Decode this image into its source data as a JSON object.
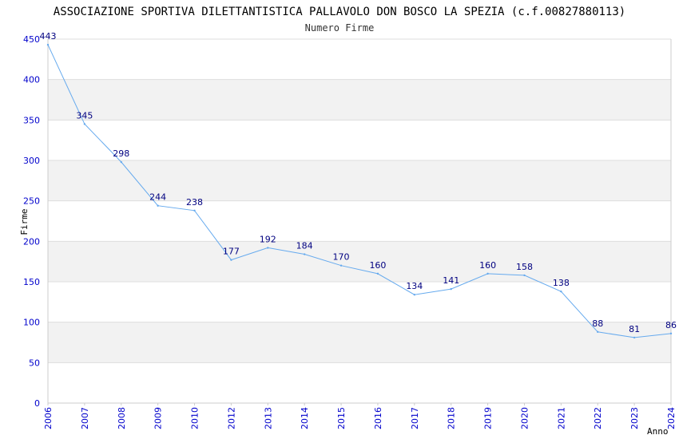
{
  "chart_data": {
    "type": "line",
    "title": "ASSOCIAZIONE SPORTIVA DILETTANTISTICA PALLAVOLO DON BOSCO LA SPEZIA (c.f.00827880113)",
    "subtitle": "Numero Firme",
    "xlabel": "Anno",
    "ylabel": "Firme",
    "ylim": [
      0,
      450
    ],
    "yticks": [
      0,
      50,
      100,
      150,
      200,
      250,
      300,
      350,
      400,
      450
    ],
    "grid": true,
    "legend": "none",
    "categories": [
      "2006",
      "2007",
      "2008",
      "2009",
      "2010",
      "2012",
      "2013",
      "2014",
      "2015",
      "2016",
      "2017",
      "2018",
      "2019",
      "2020",
      "2021",
      "2022",
      "2023",
      "2024"
    ],
    "series": [
      {
        "name": "Numero Firme",
        "values": [
          443,
          345,
          298,
          244,
          238,
          177,
          192,
          184,
          170,
          160,
          134,
          141,
          160,
          158,
          138,
          88,
          81,
          86
        ]
      }
    ]
  },
  "colors": {
    "line": "#66aaee",
    "band": "#f2f2f2",
    "gridline": "#dddddd",
    "axis": "#cccccc",
    "tick_text": "#0000cc",
    "data_label": "#000080"
  }
}
